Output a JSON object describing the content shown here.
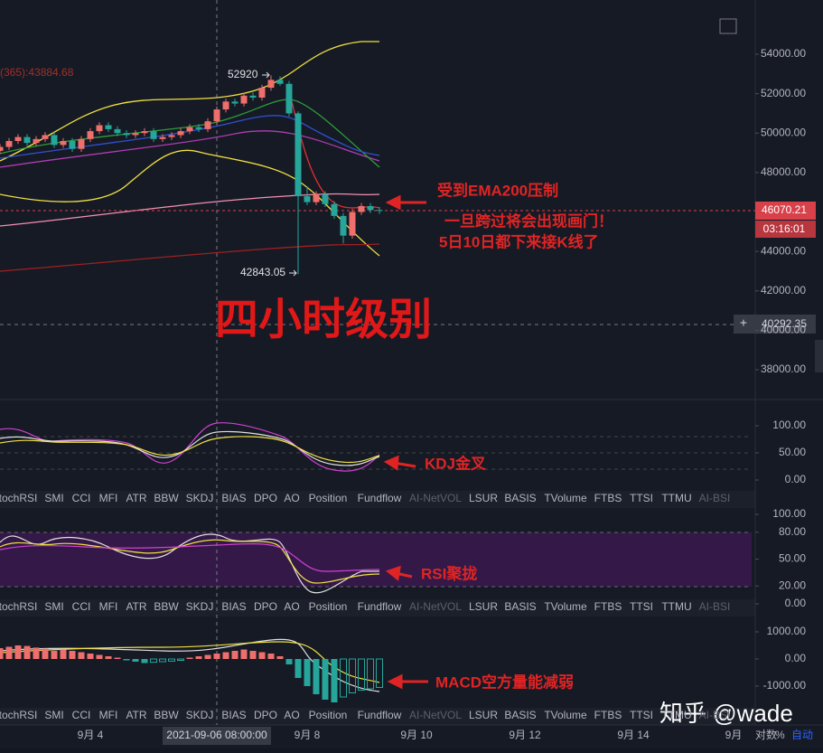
{
  "header": {
    "indicator_label": "(365):43884.68"
  },
  "price_ticks": [
    {
      "value": 54000,
      "label": "54000.00"
    },
    {
      "value": 52000,
      "label": "52000.00"
    },
    {
      "value": 50000,
      "label": "50000.00"
    },
    {
      "value": 48000,
      "label": "48000.00"
    },
    {
      "value": 44000,
      "label": "44000.00"
    },
    {
      "value": 42000,
      "label": "42000.00"
    },
    {
      "value": 40000,
      "label": "40000.00"
    },
    {
      "value": 38000,
      "label": "38000.00"
    }
  ],
  "candles": [
    [
      49100,
      49450,
      48950,
      49300
    ],
    [
      49300,
      49750,
      49150,
      49600
    ],
    [
      49600,
      49950,
      49450,
      49800
    ],
    [
      49800,
      49950,
      49350,
      49500
    ],
    [
      49500,
      49850,
      49350,
      49700
    ],
    [
      49700,
      50050,
      49550,
      49900
    ],
    [
      49900,
      50050,
      49250,
      49400
    ],
    [
      49400,
      49750,
      49250,
      49600
    ],
    [
      49600,
      49750,
      49050,
      49200
    ],
    [
      49200,
      49850,
      49050,
      49700
    ],
    [
      49700,
      50250,
      49550,
      50100
    ],
    [
      50100,
      50550,
      49950,
      50400
    ],
    [
      50400,
      50550,
      50050,
      50200
    ],
    [
      50200,
      50350,
      49850,
      50000
    ],
    [
      50000,
      50150,
      49750,
      49900
    ],
    [
      49900,
      50150,
      49750,
      50000
    ],
    [
      50000,
      50250,
      49850,
      50100
    ],
    [
      50100,
      50250,
      49550,
      49700
    ],
    [
      49700,
      49950,
      49550,
      49800
    ],
    [
      49800,
      50050,
      49650,
      49900
    ],
    [
      49900,
      50250,
      49750,
      50100
    ],
    [
      50100,
      50450,
      49950,
      50300
    ],
    [
      50300,
      50450,
      50050,
      50200
    ],
    [
      50200,
      50750,
      50050,
      50600
    ],
    [
      50600,
      51350,
      50450,
      51200
    ],
    [
      51200,
      51750,
      51050,
      51600
    ],
    [
      51600,
      51750,
      51350,
      51500
    ],
    [
      51500,
      52050,
      51350,
      51900
    ],
    [
      51900,
      52050,
      51650,
      51800
    ],
    [
      51800,
      52450,
      51650,
      52300
    ],
    [
      52300,
      52920,
      52150,
      52700
    ],
    [
      52700,
      52880,
      52400,
      52500
    ],
    [
      52500,
      52650,
      50850,
      51000
    ],
    [
      51000,
      51100,
      42843.05,
      46800
    ],
    [
      46800,
      47300,
      46350,
      46500
    ],
    [
      46500,
      47050,
      46350,
      46900
    ],
    [
      46900,
      47050,
      46250,
      46400
    ],
    [
      46400,
      46550,
      45650,
      45800
    ],
    [
      45800,
      45950,
      44400,
      44800
    ],
    [
      44800,
      46150,
      44650,
      46000
    ],
    [
      46000,
      46450,
      45850,
      46300
    ],
    [
      46300,
      46450,
      45950,
      46100
    ],
    [
      46100,
      46250,
      45900,
      46070.21
    ]
  ],
  "countdown": "03:16:01",
  "crosshair": {
    "price": 40292.35,
    "plus": "+",
    "time": "2021-09-06 08:00:00"
  },
  "notes": {
    "ema200": "受到EMA200压制",
    "breakout": "一旦跨过将会出现画门！",
    "k_line": "5日10日都下来接K线了",
    "timeframe": "四小时级别",
    "kdj": "KDJ金叉",
    "rsi": "RSI聚拢",
    "macd": "MACD空方量能减弱"
  },
  "kdj_ticks": [
    {
      "value": 100,
      "label": "100.00"
    },
    {
      "value": 50,
      "label": "50.00"
    },
    {
      "value": 0,
      "label": "0.00"
    }
  ],
  "rsi_ticks": [
    {
      "value": 100,
      "label": "100.00"
    },
    {
      "value": 80,
      "label": "80.00"
    },
    {
      "value": 50,
      "label": "50.00"
    },
    {
      "value": 20,
      "label": "20.00"
    },
    {
      "value": 0,
      "label": "0.00"
    }
  ],
  "macd_ticks": [
    {
      "value": 1000,
      "label": "1000.00"
    },
    {
      "value": 0,
      "label": "0.00"
    },
    {
      "value": -1000,
      "label": "-1000.00"
    }
  ],
  "macd_histogram": [
    400,
    450,
    500,
    480,
    420,
    380,
    300,
    350,
    300,
    250,
    200,
    150,
    100,
    50,
    -50,
    -100,
    -150,
    -120,
    -100,
    -80,
    -50,
    50,
    100,
    150,
    200,
    250,
    300,
    350,
    300,
    250,
    200,
    100,
    -200,
    -700,
    -1000,
    -1300,
    -1500,
    -1600,
    -1400,
    -1250,
    -1150,
    -1100,
    -1050
  ],
  "tabs": [
    "tochRSI",
    "SMI",
    "CCI",
    "MFI",
    "ATR",
    "BBW",
    "SKDJ",
    "BIAS",
    "DPO",
    "AO",
    "Position",
    "Fundflow",
    "AI-NetVOL",
    "LSUR",
    "BASIS",
    "TVolume",
    "FTBS",
    "TTSI",
    "TTMU",
    "AI-BSI"
  ],
  "dates": [
    "9月 4",
    "9月 8",
    "9月 10",
    "9月 12",
    "9月 14",
    "9月"
  ],
  "controls": {
    "log": "对数",
    "percent": "%",
    "auto": "自动"
  },
  "watermark": "知乎 @wade"
}
